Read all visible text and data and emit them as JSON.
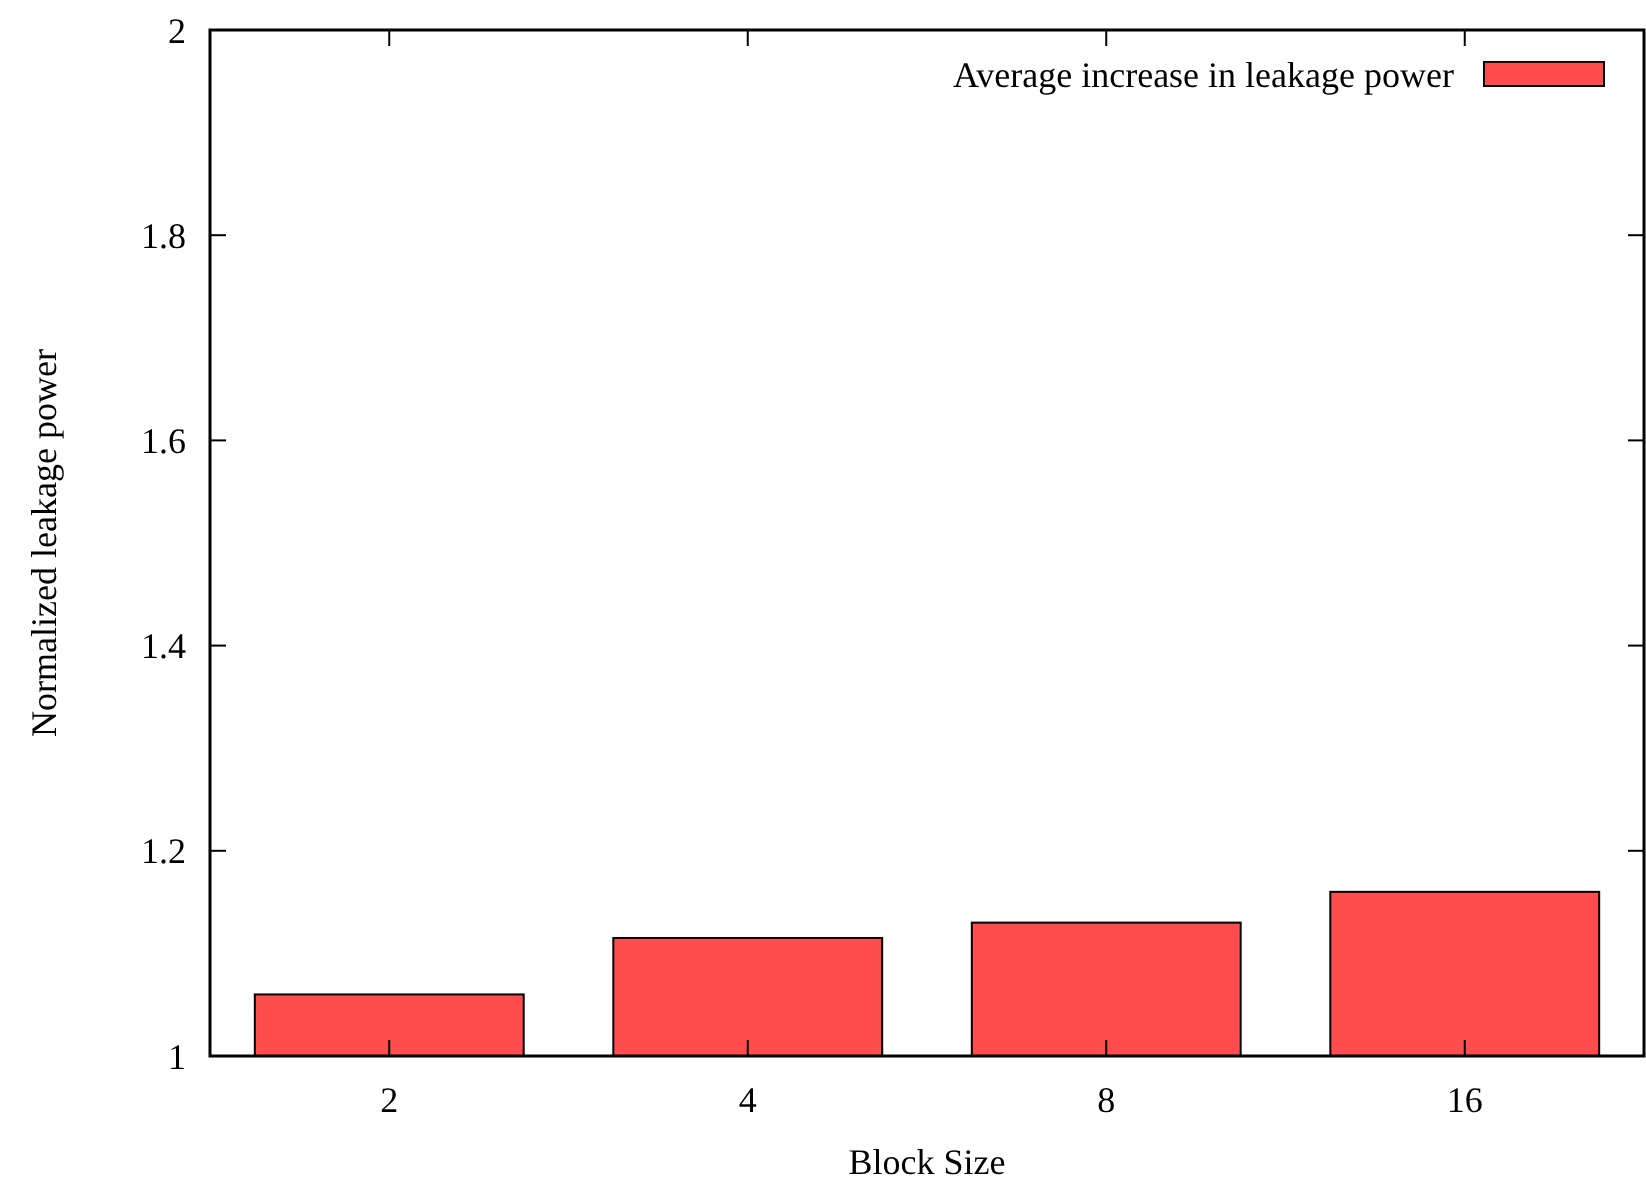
{
  "chart_data": {
    "type": "bar",
    "xlabel": "Block Size",
    "ylabel": "Normalized leakage power",
    "categories": [
      "2",
      "4",
      "8",
      "16"
    ],
    "series": [
      {
        "name": "Average increase in leakage power",
        "color": "#ff4d4d",
        "values": [
          1.06,
          1.115,
          1.13,
          1.16
        ]
      }
    ],
    "ylim": [
      1,
      2
    ],
    "yticks": [
      1,
      1.2,
      1.4,
      1.6,
      1.8,
      2
    ],
    "legend": "top right",
    "grid": false
  }
}
